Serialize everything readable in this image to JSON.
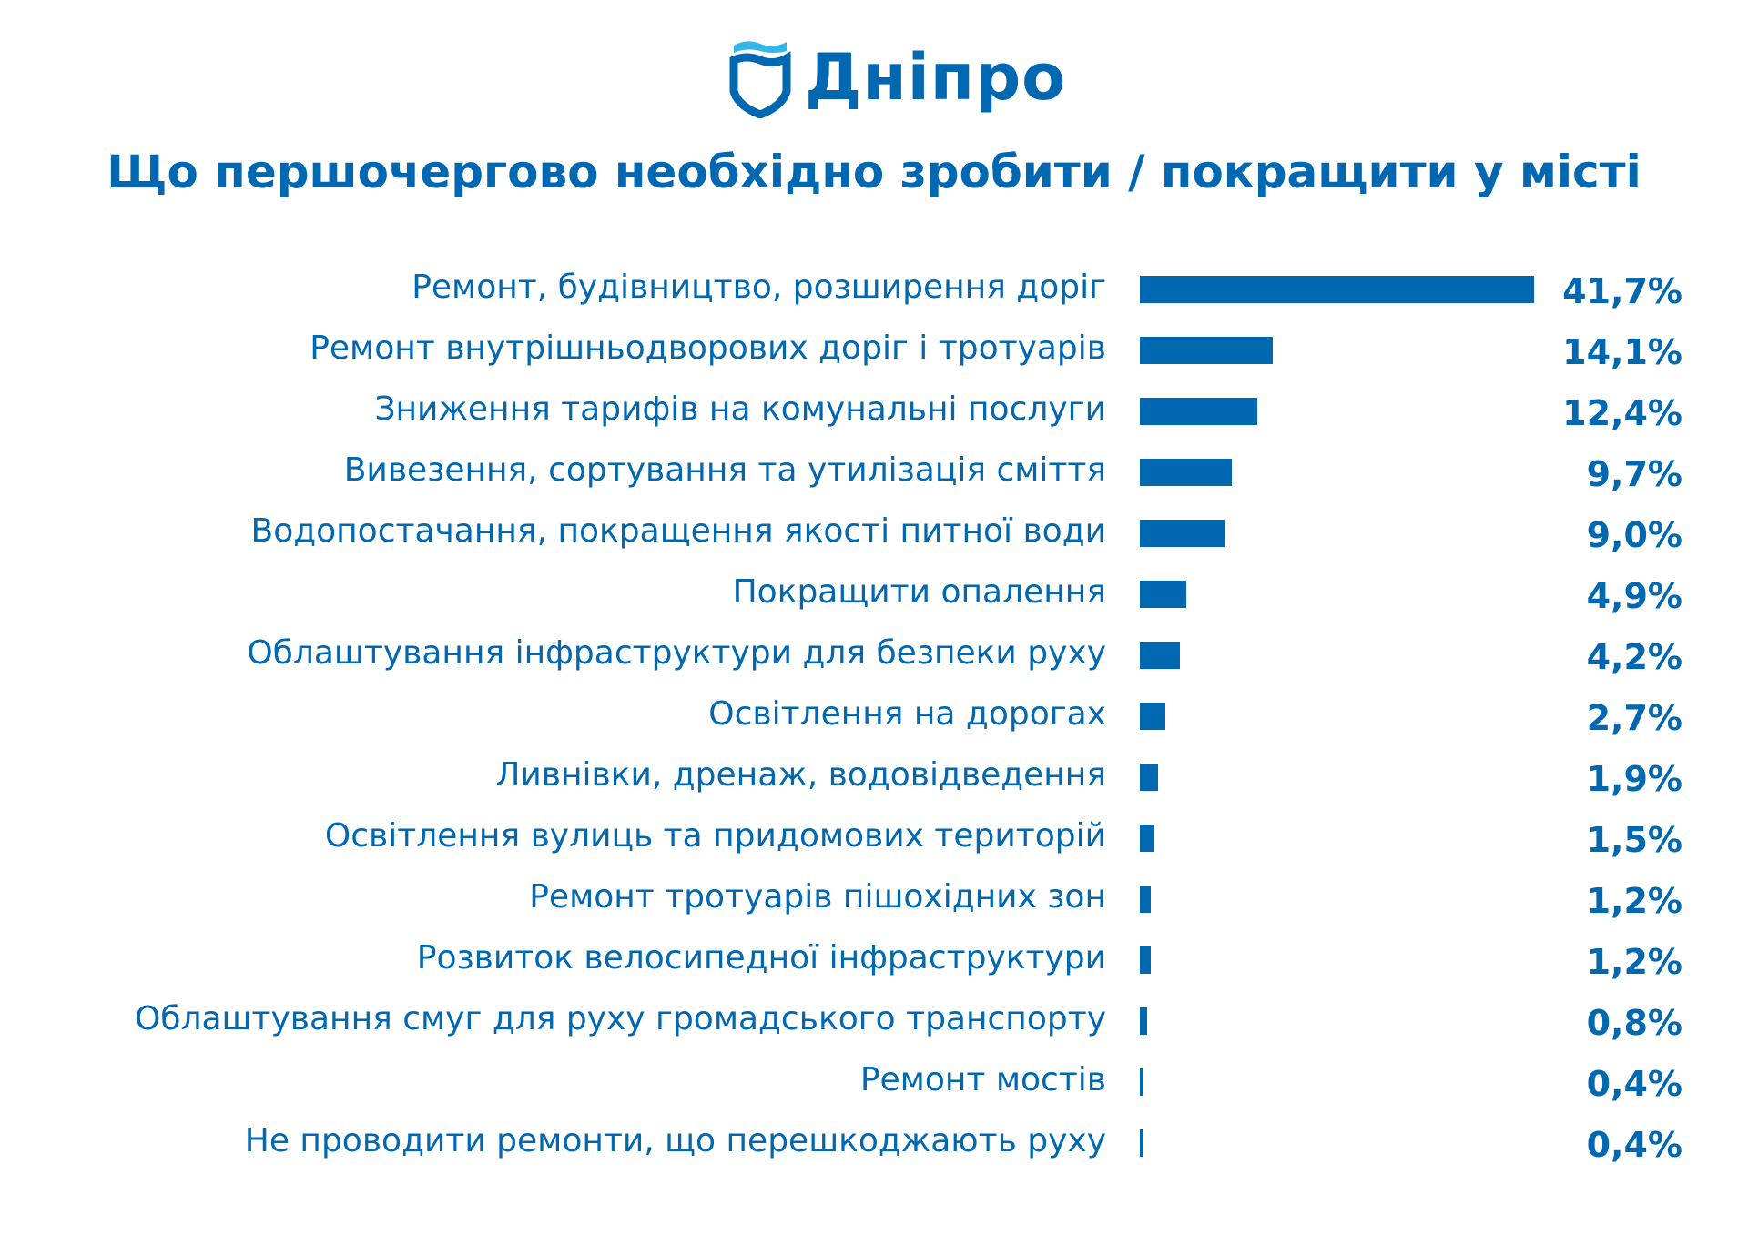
{
  "brand": {
    "name": "Дніпро",
    "logo_colors": [
      "#0067b1",
      "#35b6e8"
    ]
  },
  "chart_data": {
    "type": "bar",
    "orientation": "horizontal",
    "title": "Що першочергово необхідно зробити / покращити у місті",
    "bar_color": "#0067b1",
    "categories": [
      "Ремонт, будівництво, розширення доріг",
      "Ремонт внутрішньодворових доріг і тротуарів",
      "Зниження тарифів на комунальні послуги",
      "Вивезення, сортування та утилізація сміття",
      "Водопостачання, покращення якості питної води",
      "Покращити опалення",
      "Облаштування інфраструктури для безпеки руху",
      "Освітлення на дорогах",
      "Ливнівки, дренаж, водовідведення",
      "Освітлення вулиць та придомових територій",
      "Ремонт тротуарів пішохідних зон",
      "Розвиток велосипедної інфраструктури",
      "Облаштування смуг для руху громадського транспорту",
      "Ремонт мостів",
      "Не проводити ремонти, що перешкоджають руху"
    ],
    "values": [
      41.7,
      14.1,
      12.4,
      9.7,
      9.0,
      4.9,
      4.2,
      2.7,
      1.9,
      1.5,
      1.2,
      1.2,
      0.8,
      0.4,
      0.4
    ],
    "value_labels": [
      "41,7%",
      "14,1%",
      "12,4%",
      "9,7%",
      "9,0%",
      "4,9%",
      "4,2%",
      "2,7%",
      "1,9%",
      "1,5%",
      "1,2%",
      "1,2%",
      "0,8%",
      "0,4%",
      "0,4%"
    ],
    "unit": "%",
    "grid": false,
    "legend": "none"
  }
}
